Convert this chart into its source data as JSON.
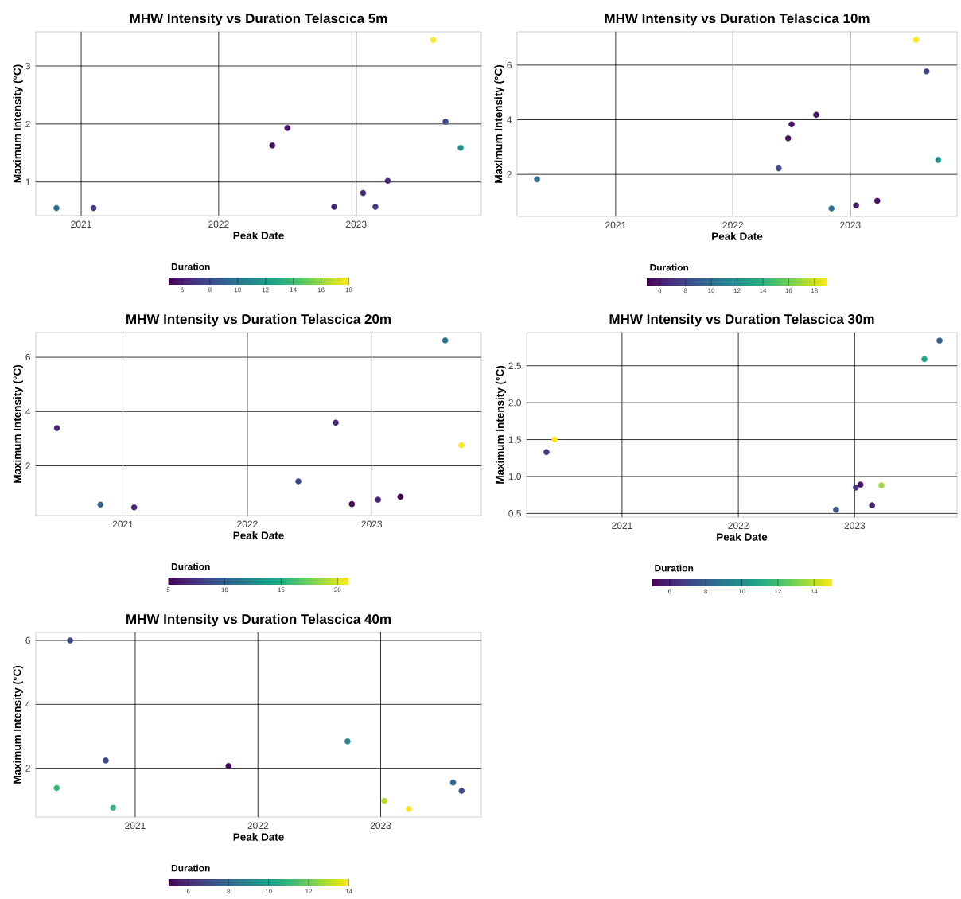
{
  "chart_data": [
    {
      "type": "scatter",
      "title": "MHW Intensity vs Duration Telascica 5m",
      "xlabel": "Peak Date",
      "ylabel": "Maximum Intensity (°C)",
      "clabel": "Duration",
      "grid": true,
      "marker": "circle",
      "x": [
        2020.82,
        2021.09,
        2022.39,
        2022.5,
        2022.84,
        2023.05,
        2023.14,
        2023.23,
        2023.56,
        2023.65,
        2023.76
      ],
      "values": [
        0.55,
        0.55,
        1.63,
        1.93,
        0.57,
        0.81,
        0.57,
        1.02,
        3.45,
        2.04,
        1.59
      ],
      "cvalues": [
        9.5,
        7,
        5.5,
        5.5,
        6.5,
        6.5,
        7,
        6.5,
        18,
        8,
        11.5
      ],
      "xlim": [
        2020.67,
        2023.91
      ],
      "ylim": [
        0.42,
        3.59
      ],
      "xticks": [
        2021,
        2022,
        2023
      ],
      "yticks": [
        1,
        2,
        3
      ],
      "clim": [
        5,
        18
      ],
      "cticks": [
        6,
        8,
        10,
        12,
        14,
        16,
        18
      ]
    },
    {
      "type": "scatter",
      "title": "MHW Intensity vs Duration Telascica 10m",
      "xlabel": "Peak Date",
      "ylabel": "Maximum Intensity (°C)",
      "clabel": "Duration",
      "grid": true,
      "marker": "circle",
      "x": [
        2020.33,
        2022.39,
        2022.47,
        2022.5,
        2022.71,
        2022.84,
        2023.05,
        2023.23,
        2023.56,
        2023.65,
        2023.75
      ],
      "values": [
        1.82,
        2.22,
        3.32,
        3.83,
        4.18,
        0.75,
        0.86,
        1.03,
        6.93,
        5.77,
        2.53
      ],
      "cvalues": [
        10,
        8,
        5.5,
        5.5,
        5.5,
        10,
        6,
        5.5,
        19,
        8,
        12
      ],
      "xlim": [
        2020.16,
        2023.91
      ],
      "ylim": [
        0.46,
        7.22
      ],
      "xticks": [
        2021,
        2022,
        2023
      ],
      "yticks": [
        2,
        4,
        6
      ],
      "clim": [
        5,
        19
      ],
      "cticks": [
        6,
        8,
        10,
        12,
        14,
        16,
        18
      ]
    },
    {
      "type": "scatter",
      "title": "MHW Intensity vs Duration Telascica 20m",
      "xlabel": "Peak Date",
      "ylabel": "Maximum Intensity (°C)",
      "clabel": "Duration",
      "grid": true,
      "marker": "circle",
      "x": [
        2020.47,
        2020.82,
        2021.09,
        2022.41,
        2022.71,
        2022.84,
        2023.05,
        2023.23,
        2023.59,
        2023.72
      ],
      "values": [
        3.39,
        0.57,
        0.47,
        1.43,
        3.59,
        0.59,
        0.75,
        0.86,
        6.62,
        2.76
      ],
      "cvalues": [
        6.5,
        10,
        6.5,
        8.5,
        6.5,
        5,
        6.5,
        5,
        11,
        21
      ],
      "xlim": [
        2020.3,
        2023.88
      ],
      "ylim": [
        0.17,
        6.91
      ],
      "xticks": [
        2021,
        2022,
        2023
      ],
      "yticks": [
        2,
        4,
        6
      ],
      "clim": [
        5,
        21
      ],
      "cticks": [
        5,
        10,
        15,
        20
      ]
    },
    {
      "type": "scatter",
      "title": "MHW Intensity vs Duration Telascica 30m",
      "xlabel": "Peak Date",
      "ylabel": "Maximum Intensity (°C)",
      "clabel": "Duration",
      "grid": true,
      "marker": "circle",
      "x": [
        2020.35,
        2020.42,
        2022.84,
        2023.01,
        2023.05,
        2023.15,
        2023.23,
        2023.6,
        2023.73
      ],
      "values": [
        1.33,
        1.5,
        0.55,
        0.85,
        0.89,
        0.61,
        0.88,
        2.59,
        2.84
      ],
      "cvalues": [
        6.5,
        15,
        7.5,
        6.5,
        5.5,
        6,
        13.5,
        11,
        8
      ],
      "xlim": [
        2020.18,
        2023.88
      ],
      "ylim": [
        0.45,
        2.95
      ],
      "xticks": [
        2021,
        2022,
        2023
      ],
      "yticks": [
        0.5,
        {
          "value": 1,
          "label": "1.0"
        },
        1.5,
        {
          "value": 2,
          "label": "2.0"
        },
        2.5
      ],
      "clim": [
        5,
        15
      ],
      "cticks": [
        6,
        8,
        10,
        12,
        14
      ]
    },
    {
      "type": "scatter",
      "title": "MHW Intensity vs Duration Telascica 40m",
      "xlabel": "Peak Date",
      "ylabel": "Maximum Intensity (°C)",
      "clabel": "Duration",
      "grid": true,
      "marker": "circle",
      "x": [
        2020.36,
        2020.47,
        2020.76,
        2020.82,
        2021.76,
        2022.73,
        2023.03,
        2023.23,
        2023.59,
        2023.66
      ],
      "values": [
        1.38,
        6.0,
        2.24,
        0.76,
        2.07,
        2.84,
        0.98,
        0.72,
        1.55,
        1.29
      ],
      "cvalues": [
        11,
        7,
        7,
        11,
        5.2,
        9,
        13,
        14,
        8,
        7
      ],
      "xlim": [
        2020.19,
        2023.82
      ],
      "ylim": [
        0.47,
        6.25
      ],
      "xticks": [
        2021,
        2022,
        2023
      ],
      "yticks": [
        2,
        4,
        6
      ],
      "clim": [
        5,
        14
      ],
      "cticks": [
        6,
        8,
        10,
        12,
        14
      ]
    }
  ]
}
